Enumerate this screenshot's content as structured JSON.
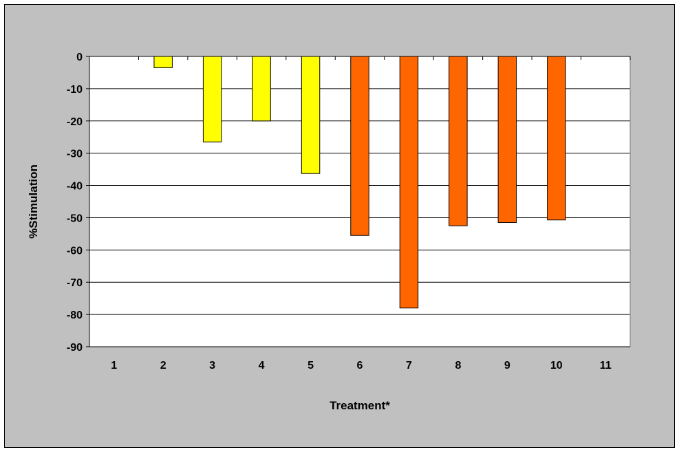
{
  "chart_data": {
    "type": "bar",
    "categories": [
      "1",
      "2",
      "3",
      "4",
      "5",
      "6",
      "7",
      "8",
      "9",
      "10",
      "11"
    ],
    "values": [
      0,
      -3.5,
      -26.5,
      -20,
      -36.3,
      -55.5,
      -78,
      -52.5,
      -51.5,
      -50.7,
      0
    ],
    "bar_colors": [
      "#ffff00",
      "#ffff00",
      "#ffff00",
      "#ffff00",
      "#ffff00",
      "#ff6600",
      "#ff6600",
      "#ff6600",
      "#ff6600",
      "#ff6600",
      "#ff6600"
    ],
    "xlabel": "Treatment*",
    "ylabel": "%Stimulation",
    "ylim": [
      -90,
      0
    ],
    "yticks": [
      0,
      -10,
      -20,
      -30,
      -40,
      -50,
      -60,
      -70,
      -80,
      -90
    ],
    "ytick_labels": [
      "0",
      "-10",
      "-20",
      "-30",
      "-40",
      "-50",
      "-60",
      "-70",
      "-80",
      "-90"
    ],
    "grid": true,
    "plot_background": "#ffffff",
    "chart_background": "#c0c0c0"
  }
}
